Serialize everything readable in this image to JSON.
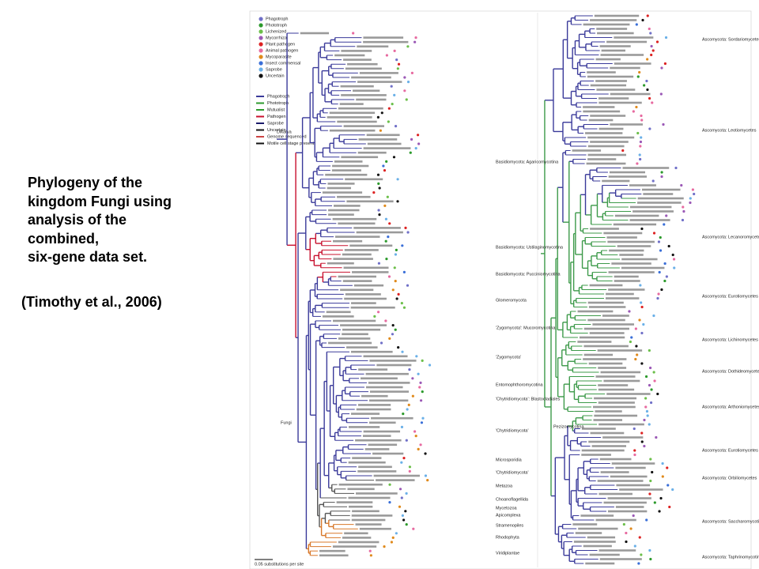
{
  "caption": {
    "lines": [
      "Phylogeny of the",
      "kingdom Fungi using",
      "analysis of the",
      "combined,",
      "six-gene data set."
    ],
    "citation": "(Timothy et al., 2006)"
  },
  "figure": {
    "legend_top": [
      "Phagotroph",
      "Phototroph",
      "Lichenized",
      "Mycorrhiza",
      "Plant pathogen",
      "Animal pathogen",
      "Mycoparasite",
      "Insect commensal",
      "Saprobe",
      "Uncertain"
    ],
    "legend_bottom": [
      "Phagotroph",
      "Phototroph",
      "Mutualist",
      "Pathogen",
      "Saprobe",
      "Uncertain",
      "Genome sequenced",
      "Motile cell stage present"
    ],
    "nodes": [
      "Dikarya",
      "Fungi",
      "Pezizomycotina"
    ],
    "clades_left": [
      "Basidiomycota: Agaricomycotina",
      "Basidiomycota: Ustilaginomycotina",
      "Basidiomycota: Pucciniomycotina",
      "Glomeromycota",
      "'Zygomycota': Mucoromycotina",
      "'Zygomycota'",
      "Entomophthoromycotina",
      "'Chytridiomycota': Blastocladiales",
      "'Chytridiomycota'",
      "Microsporidia",
      "'Chytridiomycota'",
      "Metazoa",
      "Choanoflagellida",
      "Mycetozoa",
      "Apicomplexa",
      "Stramenopiles",
      "Rhodophyta",
      "Viridiplantae"
    ],
    "clades_right": [
      "Ascomycota: Sordariomycetes",
      "Ascomycota: Leotiomycetes",
      "Ascomycota: Lecanoromycetes",
      "Ascomycota: Eurotiomycetes",
      "Ascomycota: Lichinomycetes",
      "Ascomycota: Dothideomycetes",
      "Ascomycota: Arthoniomycetes",
      "Ascomycota: Eurotiomycetes",
      "Ascomycota: Orbiliomycetes",
      "Ascomycota: Saccharomycotina",
      "Ascomycota: Taphrinomycotina"
    ],
    "scale": "0.05 substitutions per site"
  }
}
